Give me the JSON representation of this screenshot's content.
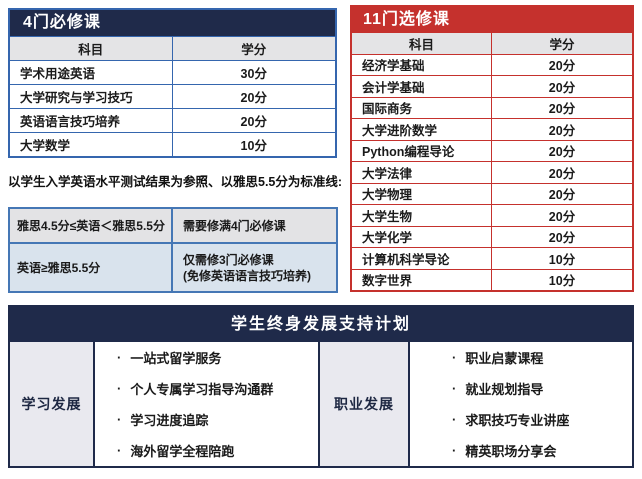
{
  "colors": {
    "navy": "#1f2a4a",
    "red": "#c5312d",
    "blue_border": "#3566ae",
    "ielts_border": "#4577b5",
    "header_gray": "#e4e4e6",
    "row_light_blue": "#d9e3ed",
    "label_gray": "#e9e9ef"
  },
  "required_courses": {
    "title": "4门必修课",
    "col_subject": "科目",
    "col_credits": "学分",
    "rows": [
      {
        "subject": "学术用途英语",
        "credits": "30分"
      },
      {
        "subject": "大学研究与学习技巧",
        "credits": "20分"
      },
      {
        "subject": "英语语言技巧培养",
        "credits": "20分"
      },
      {
        "subject": "大学数学",
        "credits": "10分"
      }
    ]
  },
  "note": "以学生入学英语水平测试结果为参照、以雅思5.5分为标准线:",
  "ielts_rule_table": {
    "rows": [
      {
        "condition": "雅思4.5分≤英语＜雅思5.5分",
        "requirement": "需要修满4门必修课",
        "requirement_note": ""
      },
      {
        "condition": "英语≥雅思5.5分",
        "requirement": "仅需修3门必修课",
        "requirement_note": "(免修英语语言技巧培养)"
      }
    ]
  },
  "elective_courses": {
    "title": "11门选修课",
    "col_subject": "科目",
    "col_credits": "学分",
    "rows": [
      {
        "subject": "经济学基础",
        "credits": "20分"
      },
      {
        "subject": "会计学基础",
        "credits": "20分"
      },
      {
        "subject": "国际商务",
        "credits": "20分"
      },
      {
        "subject": "大学进阶数学",
        "credits": "20分"
      },
      {
        "subject": "Python编程导论",
        "credits": "20分"
      },
      {
        "subject": "大学法律",
        "credits": "20分"
      },
      {
        "subject": "大学物理",
        "credits": "20分"
      },
      {
        "subject": "大学生物",
        "credits": "20分"
      },
      {
        "subject": "大学化学",
        "credits": "20分"
      },
      {
        "subject": "计算机科学导论",
        "credits": "10分"
      },
      {
        "subject": "数字世界",
        "credits": "10分"
      }
    ]
  },
  "support_plan": {
    "title": "学生终身发展支持计划",
    "bullet_icon": "·",
    "sections": [
      {
        "label": "学习发展",
        "items": [
          "一站式留学服务",
          "个人专属学习指导沟通群",
          "学习进度追踪",
          "海外留学全程陪跑"
        ]
      },
      {
        "label": "职业发展",
        "items": [
          "职业启蒙课程",
          "就业规划指导",
          "求职技巧专业讲座",
          "精英职场分享会"
        ]
      }
    ]
  }
}
